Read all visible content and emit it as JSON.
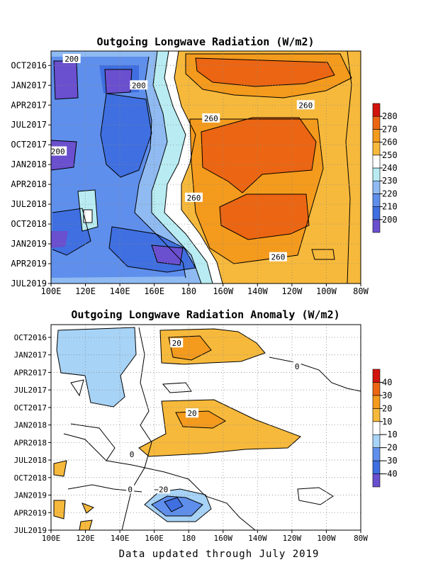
{
  "footer": "Data updated through July 2019",
  "chart_data": [
    {
      "type": "heatmap",
      "title": "Outgoing Longwave Radiation (W/m2)",
      "x_ticks": [
        "100E",
        "120E",
        "140E",
        "160E",
        "180",
        "160W",
        "140W",
        "120W",
        "100W",
        "80W"
      ],
      "y_ticks": [
        "OCT2016",
        "JAN2017",
        "APR2017",
        "JUL2017",
        "OCT2017",
        "JAN2018",
        "APR2018",
        "JUL2018",
        "OCT2018",
        "JAN2019",
        "APR2019",
        "JUL2019"
      ],
      "legend": {
        "levels": [
          "200",
          "210",
          "220",
          "230",
          "240",
          "250",
          "260",
          "270",
          "280"
        ],
        "colors": [
          "#6a4fcf",
          "#3f6fe0",
          "#5f8fec",
          "#8fbaf2",
          "#b8ecf2",
          "#ffffff",
          "#f7b93b",
          "#f49a1c",
          "#ec6512",
          "#d2140c"
        ]
      },
      "contour_labels": [
        {
          "text": "200",
          "lon": 112,
          "date": "2016-09"
        },
        {
          "text": "200",
          "lon": 151,
          "date": "2017-01"
        },
        {
          "text": "200",
          "lon": 104,
          "date": "2017-11"
        },
        {
          "text": "260",
          "lon": 193,
          "date": "2017-06"
        },
        {
          "text": "260",
          "lon": 248,
          "date": "2017-04"
        },
        {
          "text": "260",
          "lon": 183,
          "date": "2018-06"
        },
        {
          "text": "260",
          "lon": 232,
          "date": "2019-03"
        }
      ]
    },
    {
      "type": "heatmap",
      "title": "Outgoing Longwave Radiation Anomaly (W/m2)",
      "x_ticks": [
        "100E",
        "120E",
        "140E",
        "160E",
        "180",
        "160W",
        "140W",
        "120W",
        "100W",
        "80W"
      ],
      "y_ticks": [
        "OCT2016",
        "JAN2017",
        "APR2017",
        "JUL2017",
        "OCT2017",
        "JAN2018",
        "APR2018",
        "JUL2018",
        "OCT2018",
        "JAN2019",
        "APR2019",
        "JUL2019"
      ],
      "legend": {
        "levels": [
          "−40",
          "−30",
          "−20",
          "−10",
          "10",
          "20",
          "30",
          "40"
        ],
        "colors": [
          "#6a4fcf",
          "#3f6fe0",
          "#5f8fec",
          "#a7d3f6",
          "#ffffff",
          "#f7b93b",
          "#f49a1c",
          "#ec6512",
          "#d2140c"
        ]
      },
      "contour_labels": [
        {
          "text": "20",
          "lon": 173,
          "date": "2016-11"
        },
        {
          "text": "20",
          "lon": 182,
          "date": "2017-11"
        },
        {
          "text": "0",
          "lon": 147,
          "date": "2018-06"
        },
        {
          "text": "0",
          "lon": 146,
          "date": "2018-12"
        },
        {
          "text": "−20",
          "lon": 164,
          "date": "2018-12"
        },
        {
          "text": "0",
          "lon": 243,
          "date": "2017-03"
        }
      ]
    }
  ]
}
